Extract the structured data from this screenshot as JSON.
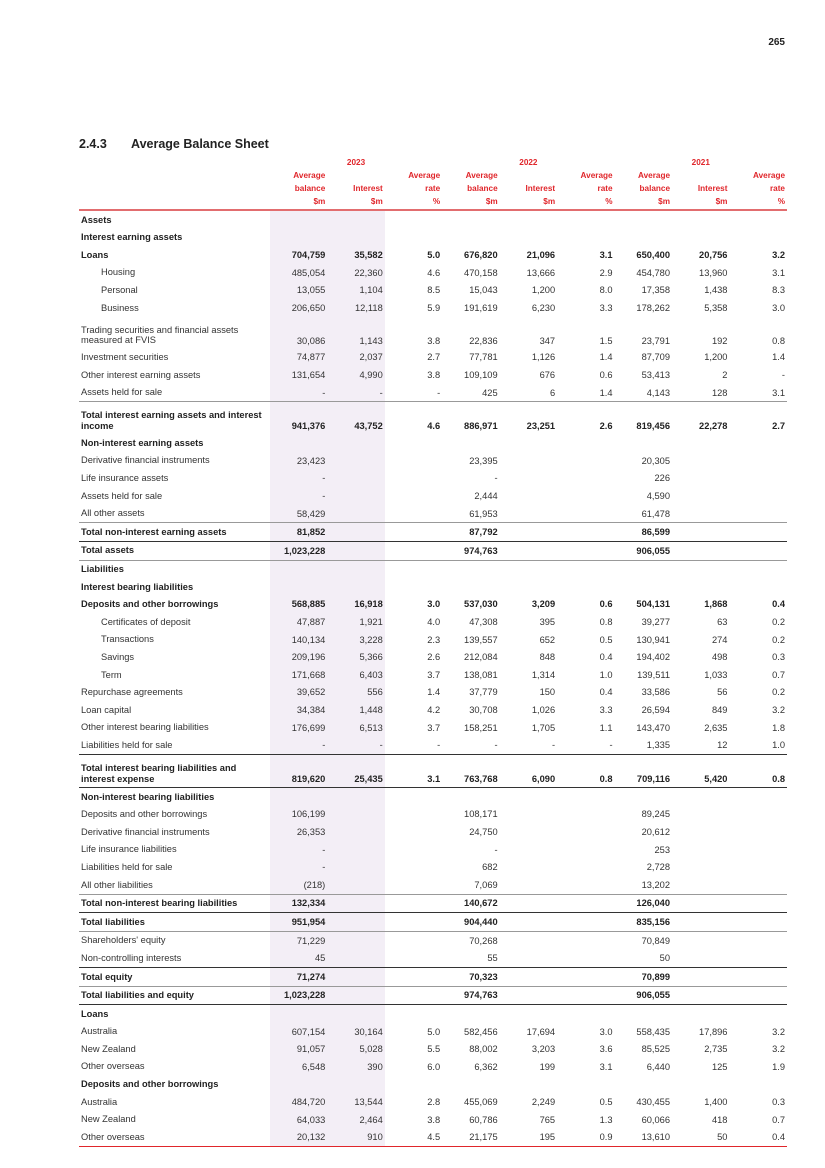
{
  "page_number": "265",
  "section": {
    "number": "2.4.3",
    "title": "Average Balance Sheet"
  },
  "header": {
    "years": [
      "2023",
      "2022",
      "2021"
    ],
    "col_line1": [
      "Average",
      "",
      "Average"
    ],
    "col_line2": [
      "balance",
      "Interest",
      "rate"
    ],
    "col_line3": [
      "$m",
      "$m",
      "%"
    ]
  },
  "rows": [
    {
      "l": "Assets",
      "s": "sec",
      "v": [
        "",
        "",
        "",
        "",
        "",
        "",
        "",
        "",
        ""
      ]
    },
    {
      "l": "Interest earning assets",
      "s": "sec",
      "v": [
        "",
        "",
        "",
        "",
        "",
        "",
        "",
        "",
        ""
      ]
    },
    {
      "l": "Loans",
      "s": "bold",
      "v": [
        "704,759",
        "35,582",
        "5.0",
        "676,820",
        "21,096",
        "3.1",
        "650,400",
        "20,756",
        "3.2"
      ]
    },
    {
      "l": "Housing",
      "s": "ind",
      "v": [
        "485,054",
        "22,360",
        "4.6",
        "470,158",
        "13,666",
        "2.9",
        "454,780",
        "13,960",
        "3.1"
      ]
    },
    {
      "l": "Personal",
      "s": "ind",
      "v": [
        "13,055",
        "1,104",
        "8.5",
        "15,043",
        "1,200",
        "8.0",
        "17,358",
        "1,438",
        "8.3"
      ]
    },
    {
      "l": "Business",
      "s": "ind",
      "v": [
        "206,650",
        "12,118",
        "5.9",
        "191,619",
        "6,230",
        "3.3",
        "178,262",
        "5,358",
        "3.0"
      ]
    },
    {
      "l": "Trading securities and financial assets measured at FVIS",
      "s": "two",
      "v": [
        "30,086",
        "1,143",
        "3.8",
        "22,836",
        "347",
        "1.5",
        "23,791",
        "192",
        "0.8"
      ]
    },
    {
      "l": "Investment securities",
      "s": "",
      "v": [
        "74,877",
        "2,037",
        "2.7",
        "77,781",
        "1,126",
        "1.4",
        "87,709",
        "1,200",
        "1.4"
      ]
    },
    {
      "l": "Other interest earning assets",
      "s": "",
      "v": [
        "131,654",
        "4,990",
        "3.8",
        "109,109",
        "676",
        "0.6",
        "53,413",
        "2",
        "-"
      ]
    },
    {
      "l": "Assets held for sale",
      "s": "",
      "v": [
        "-",
        "-",
        "-",
        "425",
        "6",
        "1.4",
        "4,143",
        "128",
        "3.1"
      ]
    },
    {
      "l": "Total interest earning assets and interest income",
      "s": "bold two tg",
      "v": [
        "941,376",
        "43,752",
        "4.6",
        "886,971",
        "23,251",
        "2.6",
        "819,456",
        "22,278",
        "2.7"
      ]
    },
    {
      "l": "Non-interest earning assets",
      "s": "sec",
      "v": [
        "",
        "",
        "",
        "",
        "",
        "",
        "",
        "",
        ""
      ]
    },
    {
      "l": "Derivative financial instruments",
      "s": "",
      "v": [
        "23,423",
        "",
        "",
        "23,395",
        "",
        "",
        "20,305",
        "",
        ""
      ]
    },
    {
      "l": "Life insurance assets",
      "s": "",
      "v": [
        "-",
        "",
        "",
        "-",
        "",
        "",
        "226",
        "",
        ""
      ]
    },
    {
      "l": "Assets held for sale",
      "s": "",
      "v": [
        "-",
        "",
        "",
        "2,444",
        "",
        "",
        "4,590",
        "",
        ""
      ]
    },
    {
      "l": "All other assets",
      "s": "",
      "v": [
        "58,429",
        "",
        "",
        "61,953",
        "",
        "",
        "61,478",
        "",
        ""
      ]
    },
    {
      "l": "Total non-interest earning assets",
      "s": "bold tg",
      "v": [
        "81,852",
        "",
        "",
        "87,792",
        "",
        "",
        "86,599",
        "",
        ""
      ]
    },
    {
      "l": "Total assets",
      "s": "bold td bg",
      "v": [
        "1,023,228",
        "",
        "",
        "974,763",
        "",
        "",
        "906,055",
        "",
        ""
      ]
    },
    {
      "l": "Liabilities",
      "s": "sec",
      "v": [
        "",
        "",
        "",
        "",
        "",
        "",
        "",
        "",
        ""
      ]
    },
    {
      "l": "Interest bearing liabilities",
      "s": "sec",
      "v": [
        "",
        "",
        "",
        "",
        "",
        "",
        "",
        "",
        ""
      ]
    },
    {
      "l": "Deposits and other borrowings",
      "s": "bold",
      "v": [
        "568,885",
        "16,918",
        "3.0",
        "537,030",
        "3,209",
        "0.6",
        "504,131",
        "1,868",
        "0.4"
      ]
    },
    {
      "l": "Certificates of deposit",
      "s": "ind",
      "v": [
        "47,887",
        "1,921",
        "4.0",
        "47,308",
        "395",
        "0.8",
        "39,277",
        "63",
        "0.2"
      ]
    },
    {
      "l": "Transactions",
      "s": "ind",
      "v": [
        "140,134",
        "3,228",
        "2.3",
        "139,557",
        "652",
        "0.5",
        "130,941",
        "274",
        "0.2"
      ]
    },
    {
      "l": "Savings",
      "s": "ind",
      "v": [
        "209,196",
        "5,366",
        "2.6",
        "212,084",
        "848",
        "0.4",
        "194,402",
        "498",
        "0.3"
      ]
    },
    {
      "l": "Term",
      "s": "ind",
      "v": [
        "171,668",
        "6,403",
        "3.7",
        "138,081",
        "1,314",
        "1.0",
        "139,511",
        "1,033",
        "0.7"
      ]
    },
    {
      "l": "Repurchase agreements",
      "s": "",
      "v": [
        "39,652",
        "556",
        "1.4",
        "37,779",
        "150",
        "0.4",
        "33,586",
        "56",
        "0.2"
      ]
    },
    {
      "l": "Loan capital",
      "s": "",
      "v": [
        "34,384",
        "1,448",
        "4.2",
        "30,708",
        "1,026",
        "3.3",
        "26,594",
        "849",
        "3.2"
      ]
    },
    {
      "l": "Other interest bearing liabilities",
      "s": "",
      "v": [
        "176,699",
        "6,513",
        "3.7",
        "158,251",
        "1,705",
        "1.1",
        "143,470",
        "2,635",
        "1.8"
      ]
    },
    {
      "l": "Liabilities held for sale",
      "s": "",
      "v": [
        "-",
        "-",
        "-",
        "-",
        "-",
        "-",
        "1,335",
        "12",
        "1.0"
      ]
    },
    {
      "l": "Total interest bearing liabilities and interest expense",
      "s": "bold two td bd",
      "v": [
        "819,620",
        "25,435",
        "3.1",
        "763,768",
        "6,090",
        "0.8",
        "709,116",
        "5,420",
        "0.8"
      ]
    },
    {
      "l": "Non-interest bearing liabilities",
      "s": "sec",
      "v": [
        "",
        "",
        "",
        "",
        "",
        "",
        "",
        "",
        ""
      ]
    },
    {
      "l": "Deposits and other borrowings",
      "s": "",
      "v": [
        "106,199",
        "",
        "",
        "108,171",
        "",
        "",
        "89,245",
        "",
        ""
      ]
    },
    {
      "l": "Derivative financial instruments",
      "s": "",
      "v": [
        "26,353",
        "",
        "",
        "24,750",
        "",
        "",
        "20,612",
        "",
        ""
      ]
    },
    {
      "l": "Life insurance liabilities",
      "s": "",
      "v": [
        "-",
        "",
        "",
        "-",
        "",
        "",
        "253",
        "",
        ""
      ]
    },
    {
      "l": "Liabilities held for sale",
      "s": "",
      "v": [
        "-",
        "",
        "",
        "682",
        "",
        "",
        "2,728",
        "",
        ""
      ]
    },
    {
      "l": "All other liabilities",
      "s": "",
      "v": [
        "(218)",
        "",
        "",
        "7,069",
        "",
        "",
        "13,202",
        "",
        ""
      ]
    },
    {
      "l": "Total non-interest bearing liabilities",
      "s": "bold tg",
      "v": [
        "132,334",
        "",
        "",
        "140,672",
        "",
        "",
        "126,040",
        "",
        ""
      ]
    },
    {
      "l": "Total liabilities",
      "s": "bold td bg",
      "v": [
        "951,954",
        "",
        "",
        "904,440",
        "",
        "",
        "835,156",
        "",
        ""
      ]
    },
    {
      "l": "Shareholders' equity",
      "s": "",
      "v": [
        "71,229",
        "",
        "",
        "70,268",
        "",
        "",
        "70,849",
        "",
        ""
      ]
    },
    {
      "l": "Non-controlling interests",
      "s": "",
      "v": [
        "45",
        "",
        "",
        "55",
        "",
        "",
        "50",
        "",
        ""
      ]
    },
    {
      "l": "Total equity",
      "s": "bold td",
      "v": [
        "71,274",
        "",
        "",
        "70,323",
        "",
        "",
        "70,899",
        "",
        ""
      ]
    },
    {
      "l": "Total liabilities and equity",
      "s": "bold tg bd",
      "v": [
        "1,023,228",
        "",
        "",
        "974,763",
        "",
        "",
        "906,055",
        "",
        ""
      ]
    },
    {
      "l": "Loans",
      "s": "sec",
      "v": [
        "",
        "",
        "",
        "",
        "",
        "",
        "",
        "",
        ""
      ]
    },
    {
      "l": "Australia",
      "s": "",
      "v": [
        "607,154",
        "30,164",
        "5.0",
        "582,456",
        "17,694",
        "3.0",
        "558,435",
        "17,896",
        "3.2"
      ]
    },
    {
      "l": "New Zealand",
      "s": "",
      "v": [
        "91,057",
        "5,028",
        "5.5",
        "88,002",
        "3,203",
        "3.6",
        "85,525",
        "2,735",
        "3.2"
      ]
    },
    {
      "l": "Other overseas",
      "s": "",
      "v": [
        "6,548",
        "390",
        "6.0",
        "6,362",
        "199",
        "3.1",
        "6,440",
        "125",
        "1.9"
      ]
    },
    {
      "l": "Deposits and other borrowings",
      "s": "sec",
      "v": [
        "",
        "",
        "",
        "",
        "",
        "",
        "",
        "",
        ""
      ]
    },
    {
      "l": "Australia",
      "s": "",
      "v": [
        "484,720",
        "13,544",
        "2.8",
        "455,069",
        "2,249",
        "0.5",
        "430,455",
        "1,400",
        "0.3"
      ]
    },
    {
      "l": "New Zealand",
      "s": "",
      "v": [
        "64,033",
        "2,464",
        "3.8",
        "60,786",
        "765",
        "1.3",
        "60,066",
        "418",
        "0.7"
      ]
    },
    {
      "l": "Other overseas",
      "s": "red",
      "v": [
        "20,132",
        "910",
        "4.5",
        "21,175",
        "195",
        "0.9",
        "13,610",
        "50",
        "0.4"
      ]
    }
  ],
  "colors": {
    "accent": "#e0262b",
    "shade": "#f3eef6"
  }
}
